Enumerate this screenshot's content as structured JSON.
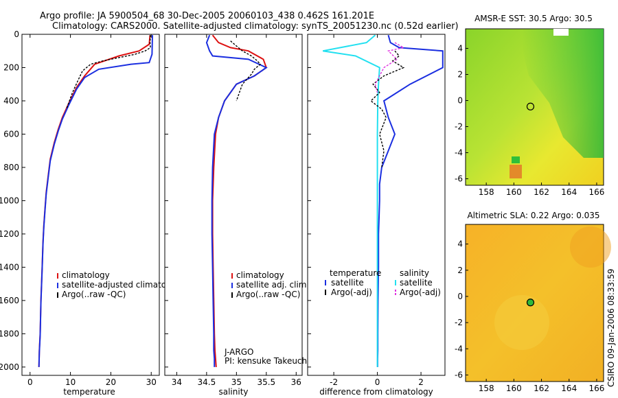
{
  "header": {
    "title1": "Argo profile: JA 5900504_68 30-Dec-2005 20060103_438 0.462S 161.201E",
    "title2": "Climatology: CARS2000. Satellite-adjusted climatology: synTS_20051230.nc (0.52d earlier)"
  },
  "credit": "CSIRO 09-Jan-2006 08:33:59",
  "colors": {
    "climatology": "#dd1111",
    "satellite": "#1a2ee0",
    "argo": "#000000",
    "sat_salinity": "#22e0f0",
    "argo_salinity": "#e030e0"
  },
  "chart_data": [
    {
      "type": "line",
      "name": "temperature",
      "xlabel": "temperature",
      "ylabel": "",
      "xlim": [
        -2,
        32
      ],
      "ylim": [
        2050,
        0
      ],
      "xticks": [
        0,
        10,
        20,
        30
      ],
      "yticks": [
        0,
        200,
        400,
        600,
        800,
        1000,
        1200,
        1400,
        1600,
        1800,
        2000
      ],
      "legend": [
        "climatology",
        "satellite-adjusted climatology",
        "Argo(..raw -QC)"
      ],
      "series": [
        {
          "name": "climatology",
          "color": "#dd1111",
          "x": [
            29.7,
            29.5,
            27,
            22,
            16,
            13.5,
            11.5,
            9.5,
            8,
            7,
            6,
            5,
            4.5,
            4,
            3.7,
            3.4,
            3.2,
            3,
            2.7,
            2.5,
            2.3,
            2.2
          ],
          "y": [
            5,
            60,
            100,
            130,
            180,
            250,
            320,
            420,
            500,
            570,
            650,
            750,
            850,
            950,
            1050,
            1150,
            1250,
            1400,
            1600,
            1800,
            1900,
            2000
          ]
        },
        {
          "name": "satellite-adjusted climatology",
          "color": "#1a2ee0",
          "x": [
            30.3,
            30.2,
            29.5,
            25,
            17,
            13.5,
            11.5,
            9.5,
            8,
            7,
            6,
            5,
            4.5,
            4,
            3.7,
            3.4,
            3.2,
            3,
            2.7,
            2.5,
            2.3,
            2.2
          ],
          "y": [
            5,
            120,
            170,
            180,
            210,
            260,
            330,
            430,
            510,
            580,
            660,
            760,
            860,
            960,
            1060,
            1160,
            1260,
            1410,
            1610,
            1810,
            1910,
            2000
          ]
        },
        {
          "name": "Argo(..raw -QC)",
          "color": "#000000",
          "x": [
            29.8,
            29.7,
            29.8,
            28.5,
            26,
            22,
            18,
            15,
            13,
            12,
            10.5,
            9
          ],
          "y": [
            5,
            50,
            80,
            100,
            120,
            140,
            160,
            180,
            220,
            270,
            350,
            450
          ]
        }
      ]
    },
    {
      "type": "line",
      "name": "salinity",
      "xlabel": "salinity",
      "ylabel": "",
      "xlim": [
        33.8,
        36.1
      ],
      "ylim": [
        2050,
        0
      ],
      "xticks": [
        34,
        34.5,
        35,
        35.5,
        36
      ],
      "legend": [
        "climatology",
        "satellite adj. clim.",
        "Argo(..raw -QC)"
      ],
      "annotation": [
        "J-ARGO",
        "PI: kensuke Takeuchi"
      ],
      "series": [
        {
          "name": "climatology",
          "color": "#dd1111",
          "x": [
            34.6,
            34.7,
            34.9,
            35.2,
            35.45,
            35.5,
            35.3,
            35.0,
            34.8,
            34.7,
            34.65,
            34.62,
            34.6,
            34.6,
            34.61,
            34.62,
            34.63,
            34.64,
            34.65,
            34.66
          ],
          "y": [
            5,
            50,
            80,
            100,
            150,
            200,
            250,
            300,
            400,
            500,
            600,
            800,
            1000,
            1200,
            1400,
            1600,
            1800,
            1900,
            1950,
            2000
          ]
        },
        {
          "name": "satellite adj. clim.",
          "color": "#1a2ee0",
          "x": [
            34.55,
            34.5,
            34.55,
            34.6,
            35.2,
            35.5,
            35.3,
            35.0,
            34.8,
            34.7,
            34.63,
            34.6,
            34.59,
            34.59,
            34.6,
            34.61,
            34.62,
            34.62,
            34.63,
            34.63
          ],
          "y": [
            5,
            50,
            100,
            130,
            150,
            200,
            250,
            300,
            400,
            500,
            600,
            800,
            1000,
            1200,
            1400,
            1600,
            1800,
            1900,
            1950,
            2000
          ]
        },
        {
          "name": "Argo(..raw -QC)",
          "color": "#000000",
          "x": [
            34.9,
            35.0,
            35.1,
            35.25,
            35.35,
            35.4,
            35.3,
            35.25,
            35.1,
            35.0
          ],
          "y": [
            40,
            70,
            100,
            130,
            160,
            180,
            210,
            240,
            300,
            400
          ]
        }
      ]
    },
    {
      "type": "line",
      "name": "difference",
      "xlabel": "difference from climatology",
      "ylabel": "",
      "xlim": [
        -3.2,
        3.1
      ],
      "ylim": [
        2050,
        0
      ],
      "xticks": [
        -2,
        0,
        2
      ],
      "legend_title": [
        "temperature",
        "salinity"
      ],
      "legend": [
        "satellite",
        "Argo(-adj)",
        "satellite",
        "Argo(-adj)"
      ],
      "series": [
        {
          "name": "temperature satellite",
          "color": "#1a2ee0",
          "x": [
            0.5,
            0.6,
            1.0,
            3.0,
            3.0,
            1.5,
            0.3,
            0.5,
            0.8,
            0.5,
            0.2,
            0.1,
            0.1,
            0.05,
            0.05,
            0.03,
            0.02,
            0.02,
            0.01,
            0.01
          ],
          "y": [
            5,
            50,
            80,
            100,
            200,
            300,
            400,
            500,
            600,
            700,
            800,
            900,
            1000,
            1200,
            1400,
            1600,
            1800,
            1900,
            1950,
            2000
          ]
        },
        {
          "name": "salinity satellite",
          "color": "#22e0f0",
          "x": [
            -0.1,
            -0.5,
            -2.5,
            -1.0,
            0.1,
            0.05,
            0.02,
            0.0,
            0.0,
            0.0,
            0.0,
            0.0,
            0.0,
            0.0,
            0.0,
            0.0
          ],
          "y": [
            5,
            50,
            100,
            130,
            200,
            300,
            400,
            600,
            800,
            1000,
            1200,
            1400,
            1600,
            1800,
            1900,
            2000
          ]
        },
        {
          "name": "temperature Argo(-adj)",
          "color": "#000000",
          "x": [
            0.8,
            1.0,
            0.7,
            1.2,
            0.3,
            -0.2,
            0.1,
            -0.3,
            0.2,
            0.4,
            0.1,
            0.3,
            0.2
          ],
          "y": [
            100,
            130,
            160,
            200,
            250,
            300,
            350,
            400,
            450,
            500,
            600,
            700,
            800
          ]
        },
        {
          "name": "salinity Argo(-adj)",
          "color": "#e030e0",
          "x": [
            0.8,
            1.2,
            0.5,
            0.9,
            0.3,
            0.1,
            -0.1,
            0.0
          ],
          "y": [
            50,
            80,
            100,
            150,
            200,
            250,
            300,
            350
          ]
        }
      ]
    },
    {
      "type": "heatmap",
      "name": "AMSR-E SST map",
      "title": "AMSR-E SST: 30.5  Argo: 30.5",
      "xlim": [
        156.5,
        166.5
      ],
      "ylim": [
        -6.5,
        5.5
      ],
      "xticks": [
        158,
        160,
        162,
        164,
        166
      ],
      "yticks": [
        -6,
        -4,
        -2,
        0,
        2,
        4
      ],
      "float_position": [
        161.201,
        -0.462
      ]
    },
    {
      "type": "heatmap",
      "name": "Altimetric SLA map",
      "title": "Altimetric SLA: 0.22  Argo: 0.035",
      "xlim": [
        156.5,
        166.5
      ],
      "ylim": [
        -6.5,
        5.5
      ],
      "xticks": [
        158,
        160,
        162,
        164,
        166
      ],
      "yticks": [
        -6,
        -4,
        -2,
        0,
        2,
        4
      ],
      "float_position": [
        161.201,
        -0.462
      ]
    }
  ]
}
